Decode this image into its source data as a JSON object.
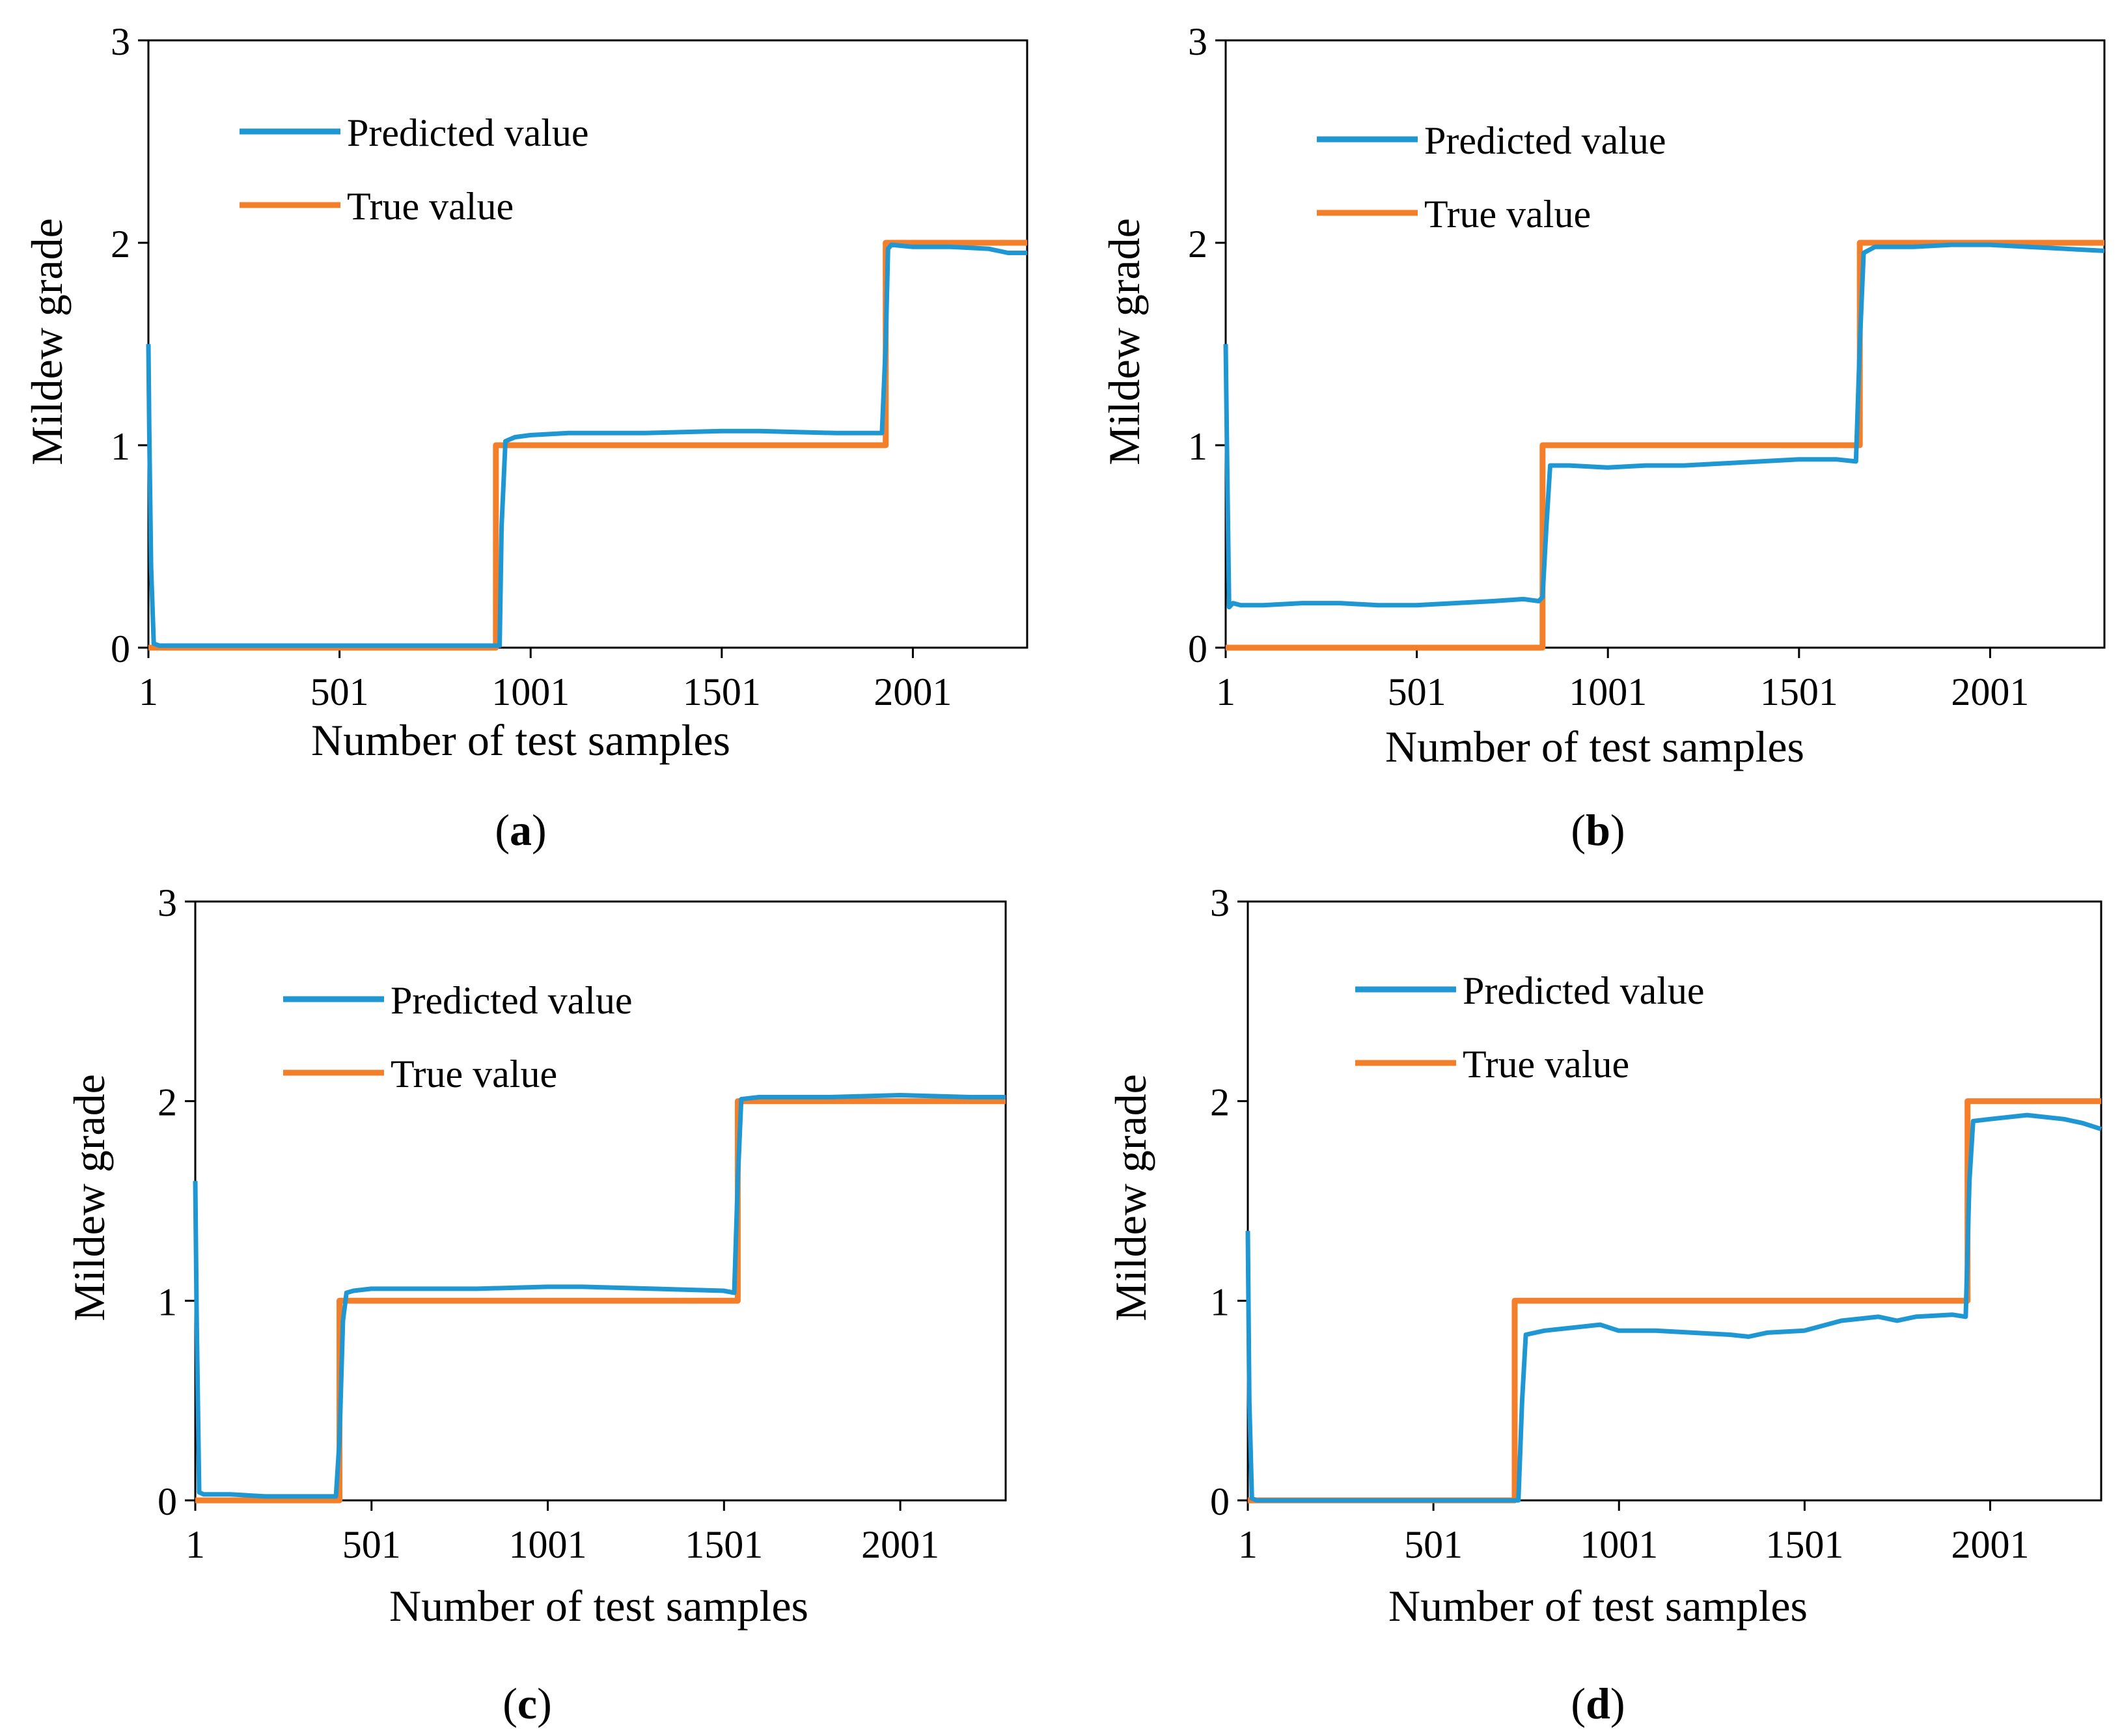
{
  "figure": {
    "panels_order": [
      "a",
      "b",
      "c",
      "d"
    ]
  },
  "colors": {
    "predicted": "#1f97d3",
    "true": "#f47f2a",
    "axis": "#000000"
  },
  "chart_data": [
    {
      "type": "line",
      "panel_label": "a",
      "xlabel": "Number of test samples",
      "ylabel": "Mildew grade",
      "xlim": [
        1,
        2300
      ],
      "ylim": [
        0,
        3
      ],
      "xticks": [
        "1",
        "501",
        "1001",
        "1501",
        "2001"
      ],
      "xtick_values": [
        1,
        501,
        1001,
        1501,
        2001
      ],
      "yticks": [
        "0",
        "1",
        "2",
        "3"
      ],
      "ytick_values": [
        0,
        1,
        2,
        3
      ],
      "legend_position": "top-left",
      "series": [
        {
          "name": "Predicted value",
          "x": [
            1,
            3,
            8,
            15,
            30,
            100,
            300,
            500,
            700,
            900,
            920,
            925,
            935,
            960,
            1000,
            1100,
            1300,
            1500,
            1600,
            1800,
            1920,
            1930,
            1936,
            1945,
            2000,
            2100,
            2200,
            2250,
            2300
          ],
          "y": [
            1.5,
            1.1,
            0.4,
            0.02,
            0.01,
            0.01,
            0.01,
            0.01,
            0.01,
            0.01,
            0.01,
            0.6,
            1.02,
            1.04,
            1.05,
            1.06,
            1.06,
            1.07,
            1.07,
            1.06,
            1.06,
            1.5,
            1.97,
            1.99,
            1.98,
            1.98,
            1.97,
            1.95,
            1.95
          ]
        },
        {
          "name": "True value",
          "x": [
            1,
            910,
            910,
            1930,
            1930,
            2300
          ],
          "y": [
            0,
            0,
            1,
            1,
            2,
            2
          ]
        }
      ]
    },
    {
      "type": "line",
      "panel_label": "b",
      "xlabel": "Number of test samples",
      "ylabel": "Mildew grade",
      "xlim": [
        1,
        2300
      ],
      "ylim": [
        0,
        3
      ],
      "xticks": [
        "1",
        "501",
        "1001",
        "1501",
        "2001"
      ],
      "xtick_values": [
        1,
        501,
        1001,
        1501,
        2001
      ],
      "yticks": [
        "0",
        "1",
        "2",
        "3"
      ],
      "ytick_values": [
        0,
        1,
        2,
        3
      ],
      "legend_position": "top-left",
      "series": [
        {
          "name": "Predicted value",
          "x": [
            1,
            5,
            10,
            20,
            40,
            100,
            200,
            300,
            400,
            500,
            600,
            700,
            780,
            820,
            830,
            840,
            850,
            900,
            1000,
            1100,
            1200,
            1300,
            1400,
            1500,
            1600,
            1650,
            1660,
            1670,
            1700,
            1800,
            1900,
            2000,
            2100,
            2200,
            2300
          ],
          "y": [
            1.5,
            0.9,
            0.2,
            0.22,
            0.21,
            0.21,
            0.22,
            0.22,
            0.21,
            0.21,
            0.22,
            0.23,
            0.24,
            0.23,
            0.25,
            0.6,
            0.9,
            0.9,
            0.89,
            0.9,
            0.9,
            0.91,
            0.92,
            0.93,
            0.93,
            0.92,
            1.5,
            1.95,
            1.98,
            1.98,
            1.99,
            1.99,
            1.98,
            1.97,
            1.96
          ]
        },
        {
          "name": "True value",
          "x": [
            1,
            830,
            830,
            1660,
            1660,
            2300
          ],
          "y": [
            0,
            0,
            1,
            1,
            2,
            2
          ]
        }
      ]
    },
    {
      "type": "line",
      "panel_label": "c",
      "xlabel": "Number of test samples",
      "ylabel": "Mildew grade",
      "xlim": [
        1,
        2300
      ],
      "ylim": [
        0,
        3
      ],
      "xticks": [
        "1",
        "501",
        "1001",
        "1501",
        "2001"
      ],
      "xtick_values": [
        1,
        501,
        1001,
        1501,
        2001
      ],
      "yticks": [
        "0",
        "1",
        "2",
        "3"
      ],
      "ytick_values": [
        0,
        1,
        2,
        3
      ],
      "legend_position": "top-left",
      "series": [
        {
          "name": "Predicted value",
          "x": [
            1,
            5,
            12,
            25,
            100,
            200,
            300,
            400,
            410,
            420,
            430,
            450,
            500,
            600,
            800,
            1000,
            1100,
            1300,
            1500,
            1530,
            1540,
            1550,
            1600,
            1800,
            2000,
            2200,
            2300
          ],
          "y": [
            1.6,
            0.9,
            0.04,
            0.03,
            0.03,
            0.02,
            0.02,
            0.02,
            0.3,
            0.9,
            1.04,
            1.05,
            1.06,
            1.06,
            1.06,
            1.07,
            1.07,
            1.06,
            1.05,
            1.04,
            1.6,
            2.01,
            2.02,
            2.02,
            2.03,
            2.02,
            2.02
          ]
        },
        {
          "name": "True value",
          "x": [
            1,
            410,
            410,
            1540,
            1540,
            2300
          ],
          "y": [
            0,
            0,
            1,
            1,
            2,
            2
          ]
        }
      ]
    },
    {
      "type": "line",
      "panel_label": "d",
      "xlabel": "Number of test samples",
      "ylabel": "Mildew grade",
      "xlim": [
        1,
        2300
      ],
      "ylim": [
        0,
        3
      ],
      "xticks": [
        "1",
        "501",
        "1001",
        "1501",
        "2001"
      ],
      "xtick_values": [
        1,
        501,
        1001,
        1501,
        2001
      ],
      "yticks": [
        "0",
        "1",
        "2",
        "3"
      ],
      "ytick_values": [
        0,
        1,
        2,
        3
      ],
      "legend_position": "top-left",
      "series": [
        {
          "name": "Predicted value",
          "x": [
            1,
            5,
            12,
            25,
            100,
            300,
            500,
            700,
            730,
            740,
            750,
            800,
            900,
            950,
            1000,
            1100,
            1200,
            1300,
            1350,
            1400,
            1500,
            1600,
            1700,
            1750,
            1800,
            1900,
            1935,
            1945,
            1955,
            2000,
            2100,
            2200,
            2250,
            2300
          ],
          "y": [
            1.35,
            0.5,
            0.01,
            0.0,
            0.0,
            0.0,
            0.0,
            0.0,
            0.0,
            0.5,
            0.83,
            0.85,
            0.87,
            0.88,
            0.85,
            0.85,
            0.84,
            0.83,
            0.82,
            0.84,
            0.85,
            0.9,
            0.92,
            0.9,
            0.92,
            0.93,
            0.92,
            1.6,
            1.9,
            1.91,
            1.93,
            1.91,
            1.89,
            1.86
          ]
        },
        {
          "name": "True value",
          "x": [
            1,
            720,
            720,
            1940,
            1940,
            2300
          ],
          "y": [
            0,
            0,
            1,
            1,
            2,
            2
          ]
        }
      ]
    }
  ]
}
